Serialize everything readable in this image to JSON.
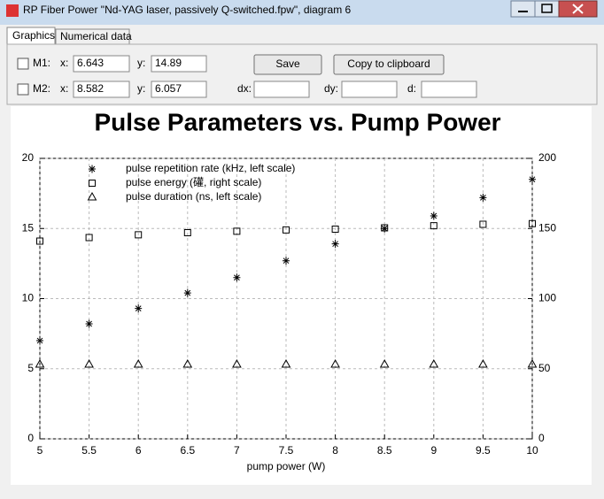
{
  "window": {
    "title": "RP Fiber Power \"Nd-YAG laser, passively Q-switched.fpw\", diagram 6"
  },
  "tabs": [
    "Graphics",
    "Numerical data"
  ],
  "cursors": [
    {
      "label": "M1:",
      "x_label": "x:",
      "x": "6.643",
      "y_label": "y:",
      "y": "14.89"
    },
    {
      "label": "M2:",
      "x_label": "x:",
      "x": "8.582",
      "y_label": "y:",
      "y": "6.057"
    }
  ],
  "buttons": [
    "Save",
    "Copy to clipboard"
  ],
  "deltas": [
    "dx:",
    "dy:",
    "d:"
  ],
  "chart_data": {
    "type": "scatter",
    "title": "Pulse Parameters vs. Pump Power",
    "x_label": "pump power (W)",
    "x": [
      5,
      5.5,
      6,
      6.5,
      7,
      7.5,
      8,
      8.5,
      9,
      9.5,
      10
    ],
    "series": [
      {
        "name": "pulse repetition rate (kHz, left scale)",
        "marker": "asterisk",
        "color": "#000000",
        "values": [
          7.0,
          8.2,
          9.3,
          10.4,
          11.5,
          12.7,
          13.9,
          15.0,
          15.9,
          17.2,
          18.5
        ]
      },
      {
        "name": "pulse energy (礶, right scale)",
        "marker": "square",
        "color": "#000000",
        "axis": "y2",
        "values": [
          141,
          143.5,
          145.5,
          147,
          148,
          149,
          149.5,
          150.5,
          152,
          153,
          153.5
        ]
      },
      {
        "name": "pulse duration (ns, left scale)",
        "marker": "triangle",
        "color": "#000000",
        "values": [
          5.3,
          5.3,
          5.3,
          5.3,
          5.3,
          5.3,
          5.3,
          5.3,
          5.3,
          5.3,
          5.3
        ]
      }
    ],
    "xlim": [
      5,
      10
    ],
    "xticks": [
      5,
      5.5,
      6,
      6.5,
      7,
      7.5,
      8,
      8.5,
      9,
      9.5,
      10
    ],
    "ylim": [
      0,
      20
    ],
    "yticks": [
      0,
      5,
      10,
      15,
      20
    ],
    "y2lim": [
      0,
      200
    ],
    "y2ticks": [
      0,
      50,
      100,
      150,
      200
    ],
    "grid": true
  }
}
